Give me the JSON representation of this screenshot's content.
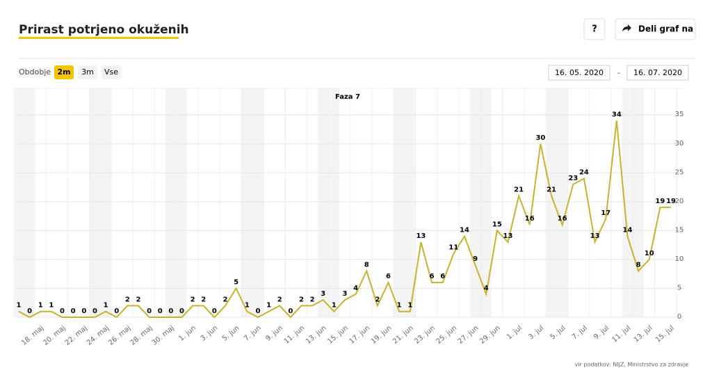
{
  "ui": {
    "title": "Prirast potrjeno okuženih",
    "help": "?",
    "share": "Deli graf na",
    "period_label": "Obdobje",
    "periods": [
      "2m",
      "3m",
      "Vse"
    ],
    "date_from": "16. 05. 2020",
    "date_sep": "–",
    "date_to": "16. 07. 2020",
    "source": "vir podatkov: NIJZ, Ministrstvo za zdravje"
  },
  "chart_data": {
    "type": "line",
    "annotation": "Faza 7",
    "color": "#c9b229",
    "categories": [
      null,
      null,
      "18. maj",
      null,
      "20. maj",
      null,
      "22. maj",
      null,
      "24. maj",
      null,
      "26. maj",
      null,
      "28. maj",
      null,
      "30. maj",
      null,
      "1. jun",
      null,
      "3. jun",
      null,
      "5. jun",
      null,
      "7. jun",
      null,
      "9. jun",
      null,
      "11. jun",
      null,
      "13. jun",
      null,
      "15. jun",
      null,
      "17. jun",
      null,
      "19. jun",
      null,
      "21. jun",
      null,
      "23. jun",
      null,
      "25. jun",
      null,
      "27. jun",
      null,
      "29. jun",
      null,
      "1. jul",
      null,
      "3. jul",
      null,
      "5. jul",
      null,
      "7. jul",
      null,
      "9. jul",
      null,
      "11. jul",
      null,
      "13. jul",
      null,
      "15. jul"
    ],
    "values": [
      1,
      0,
      1,
      1,
      0,
      0,
      0,
      0,
      1,
      0,
      2,
      2,
      0,
      0,
      0,
      0,
      2,
      2,
      0,
      2,
      5,
      1,
      0,
      1,
      2,
      0,
      2,
      2,
      3,
      1,
      3,
      4,
      8,
      2,
      6,
      1,
      1,
      13,
      6,
      6,
      11,
      14,
      9,
      4,
      15,
      13,
      21,
      16,
      30,
      21,
      16,
      23,
      24,
      13,
      17,
      34,
      14,
      8,
      10,
      19,
      19
    ],
    "ylim": [
      0,
      39.6
    ],
    "yticks": [
      0,
      5,
      10,
      15,
      20,
      25,
      30,
      35
    ],
    "grid": true
  }
}
